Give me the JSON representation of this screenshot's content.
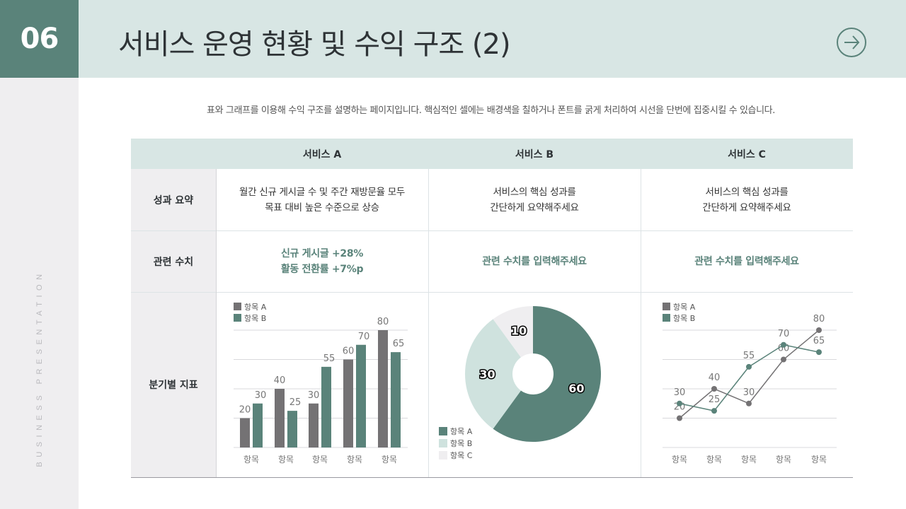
{
  "slide": {
    "number": "06",
    "title": "서비스 운영 현황 및 수익 구조 (2)",
    "next_icon": "arrow-right-circle-icon",
    "side_text": "BUSINESS PRESENTATION",
    "description": "표와 그래프를 이용해 수익 구조를 설명하는 페이지입니다. 핵심적인 셀에는 배경색을 칠하거나 폰트를 굵게 처리하여 시선을 단번에 집중시킬 수 있습니다."
  },
  "colors": {
    "accent": "#5a837a",
    "header_bg": "#d8e6e4",
    "sidebar_bg": "#efeef0",
    "series_a_gray": "#747274",
    "series_b_green": "#5a837a",
    "pie_b": "#cfe2de",
    "pie_c": "#efeef0"
  },
  "table": {
    "columns": [
      "서비스 A",
      "서비스 B",
      "서비스 C"
    ],
    "rows": [
      {
        "label": "성과 요약",
        "cells": [
          [
            "월간 신규 게시글 수 및 주간 재방문율 모두",
            "목표 대비 높은 수준으로 상승"
          ],
          [
            "서비스의 핵심 성과를",
            "간단하게 요약해주세요"
          ],
          [
            "서비스의 핵심 성과를",
            "간단하게 요약해주세요"
          ]
        ]
      },
      {
        "label": "관련 수치",
        "cells": [
          [
            "신규 게시글 +28%",
            "활동 전환률 +7%p"
          ],
          [
            "관련 수치를 입력해주세요"
          ],
          [
            "관련 수치를 입력해주세요"
          ]
        ]
      },
      {
        "label": "분기별 지표"
      }
    ]
  },
  "chart_data": [
    {
      "type": "bar",
      "categories": [
        "항목",
        "항목",
        "항목",
        "항목",
        "항목"
      ],
      "series": [
        {
          "name": "항목 A",
          "values": [
            20,
            40,
            30,
            60,
            80
          ]
        },
        {
          "name": "항목 B",
          "values": [
            30,
            25,
            55,
            70,
            65
          ]
        }
      ],
      "ylim": [
        0,
        80
      ],
      "grid": true,
      "legend_position": "top-left"
    },
    {
      "type": "pie",
      "donut": true,
      "categories": [
        "항목 A",
        "항목 B",
        "항목 C"
      ],
      "values": [
        60,
        30,
        10
      ],
      "legend_position": "bottom-left"
    },
    {
      "type": "line",
      "categories": [
        "항목",
        "항목",
        "항목",
        "항목",
        "항목"
      ],
      "series": [
        {
          "name": "항목 A",
          "values": [
            20,
            40,
            30,
            60,
            80
          ]
        },
        {
          "name": "항목 B",
          "values": [
            30,
            25,
            55,
            70,
            65
          ]
        }
      ],
      "ylim": [
        0,
        80
      ],
      "grid": true,
      "legend_position": "top-left"
    }
  ]
}
